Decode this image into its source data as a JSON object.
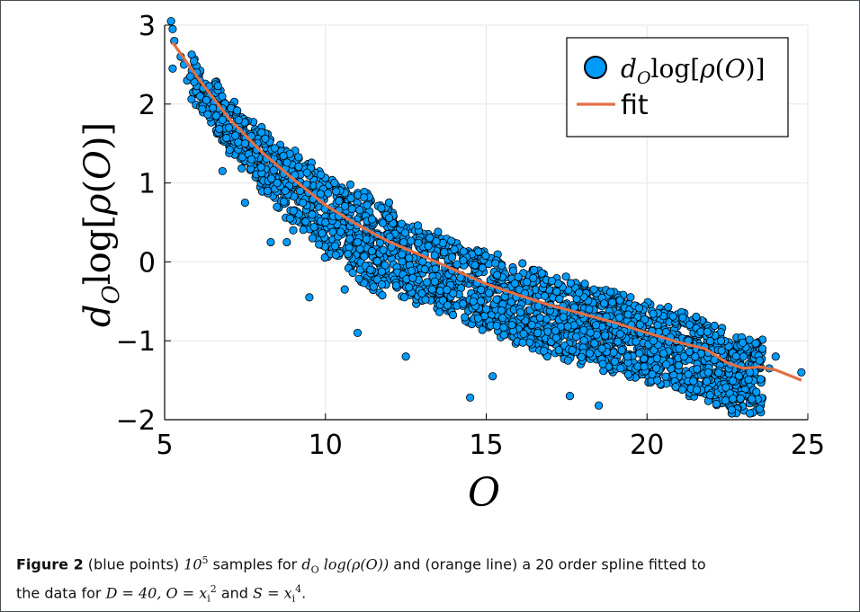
{
  "chart_data": {
    "type": "scatter",
    "xlabel": "O",
    "ylabel": "d_O log[ρ(O)]",
    "xlim": [
      5,
      25
    ],
    "ylim": [
      -2,
      3
    ],
    "x_ticks": [
      "5",
      "10",
      "15",
      "20",
      "25"
    ],
    "y_ticks": [
      "3",
      "2",
      "1",
      "0",
      "−1",
      "−2"
    ],
    "grid": true,
    "legend_position": "top-right",
    "series": [
      {
        "name": "d_O log[ρ(O)]",
        "kind": "scatter",
        "color": "#009af9",
        "x": [
          5.2,
          5.25,
          5.3,
          5.25,
          5.5,
          5.6,
          5.7,
          5.8,
          6.0,
          6.1,
          6.2,
          6.3,
          6.5,
          6.6,
          6.8,
          7.0,
          7.2,
          7.5,
          6.8,
          7.5,
          7.7,
          8.0,
          8.2,
          8.5,
          8.3,
          8.9,
          9.0,
          9.3,
          9.6,
          10.0,
          10.3,
          10.7,
          11.0,
          10.6,
          11.4,
          11.8,
          12.2,
          12.6,
          13.0,
          13.4,
          13.8,
          14.2,
          14.6,
          15.0,
          15.4,
          15.8,
          16.2,
          16.6,
          17.0,
          17.4,
          17.8,
          18.2,
          18.6,
          19.0,
          19.4,
          19.8,
          20.2,
          20.6,
          21.0,
          21.5,
          21.9,
          22.3,
          22.6,
          23.0,
          23.2,
          23.5,
          23.8,
          24.0,
          24.8,
          14.5,
          18.5,
          23.2,
          23.4,
          21.1,
          17.6,
          15.2,
          12.5,
          11.0,
          9.5,
          8.8
        ],
        "y": [
          3.05,
          2.95,
          2.8,
          2.45,
          2.6,
          2.5,
          2.3,
          2.35,
          2.4,
          2.1,
          2.2,
          2.05,
          1.95,
          1.85,
          1.8,
          1.7,
          1.6,
          1.5,
          1.15,
          0.75,
          1.3,
          1.2,
          0.9,
          1.0,
          0.25,
          0.55,
          0.4,
          0.75,
          0.3,
          0.5,
          0.2,
          0.1,
          0.25,
          -0.35,
          -0.1,
          0.15,
          -0.3,
          0.05,
          -0.4,
          -0.25,
          -0.55,
          -0.2,
          -0.5,
          -0.6,
          -0.35,
          -0.8,
          -0.4,
          -0.9,
          -0.55,
          -0.7,
          -0.95,
          -0.6,
          -1.1,
          -0.8,
          -1.2,
          -0.9,
          -1.0,
          -1.3,
          -1.1,
          -1.2,
          -1.4,
          -1.0,
          -1.3,
          -1.2,
          -1.4,
          -1.25,
          -1.35,
          -1.2,
          -1.4,
          -1.72,
          -1.82,
          -1.92,
          -1.65,
          -1.62,
          -1.7,
          -1.45,
          -1.2,
          -0.9,
          -0.45,
          0.25
        ]
      },
      {
        "name": "fit",
        "kind": "line",
        "color": "#e26f46",
        "x": [
          5.25,
          6,
          7,
          8,
          9,
          10,
          11,
          12,
          13,
          14,
          15,
          16,
          17,
          18,
          19,
          20,
          21,
          21.8,
          22.5,
          23,
          23.5,
          24,
          24.8
        ],
        "y": [
          2.78,
          2.35,
          1.82,
          1.4,
          1.05,
          0.72,
          0.47,
          0.25,
          0.08,
          -0.1,
          -0.28,
          -0.42,
          -0.55,
          -0.66,
          -0.77,
          -0.9,
          -1.02,
          -1.1,
          -1.28,
          -1.35,
          -1.33,
          -1.37,
          -1.5
        ]
      }
    ]
  },
  "caption": {
    "label": "Figure 2",
    "text_parts": [
      "(blue points)",
      "10",
      "5",
      "samples for",
      "d",
      "O",
      "log(ρ(O))",
      "and (orange line) a 20 order spline fitted to",
      "the data for",
      "D = 40, O = x",
      "i",
      "2",
      "and",
      "S = x",
      "4",
      "."
    ]
  }
}
